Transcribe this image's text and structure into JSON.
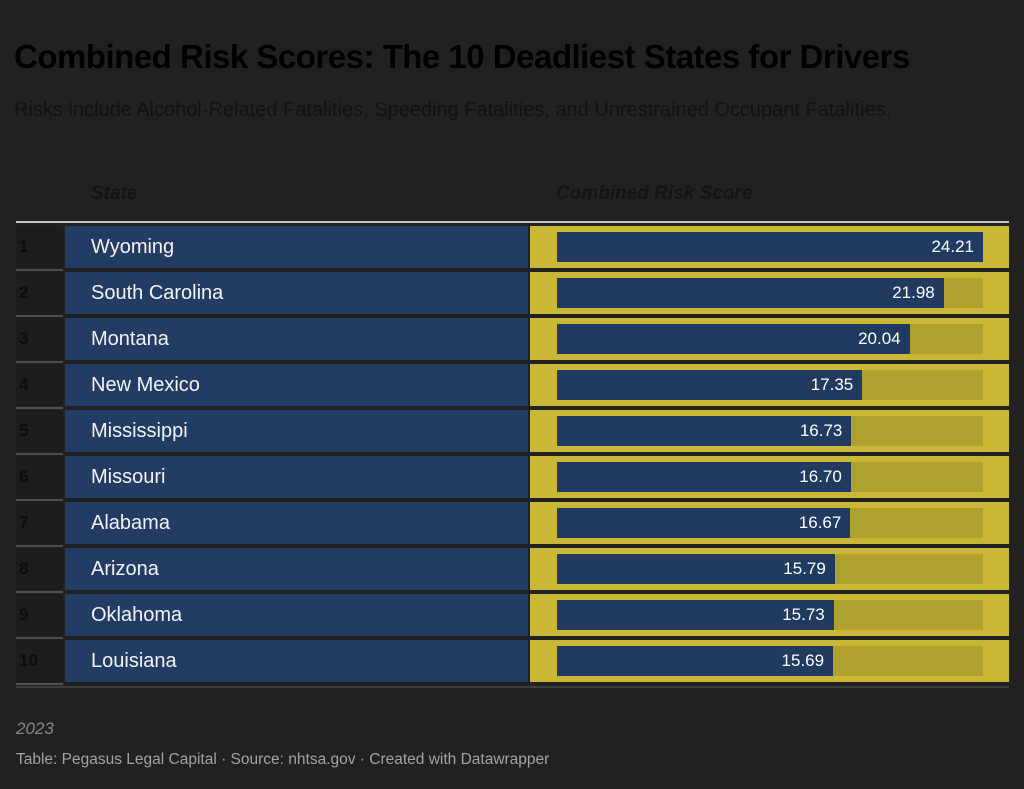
{
  "header": {
    "title": "Combined Risk Scores: The 10 Deadliest States for Drivers",
    "subtitle": "Risks include Alcohol-Related Fatalities, Speeding Fatalities, and Unrestrained Occupant Fatalities."
  },
  "chart_data": {
    "type": "table",
    "title": "Combined Risk Scores: The 10 Deadliest States for Drivers",
    "subtitle": "Risks include Alcohol-Related Fatalities, Speeding Fatalities, and Unrestrained Occupant Fatalities.",
    "columns": [
      "State",
      "Combined Risk Score"
    ],
    "bar_axis": {
      "min": 0,
      "max": 24.21
    },
    "legend": "none",
    "rows": [
      {
        "rank": 1,
        "state": "Wyoming",
        "score": 24.21
      },
      {
        "rank": 2,
        "state": "South Carolina",
        "score": 21.98
      },
      {
        "rank": 3,
        "state": "Montana",
        "score": 20.04
      },
      {
        "rank": 4,
        "state": "New Mexico",
        "score": 17.35
      },
      {
        "rank": 5,
        "state": "Mississippi",
        "score": 16.73
      },
      {
        "rank": 6,
        "state": "Missouri",
        "score": 16.7
      },
      {
        "rank": 7,
        "state": "Alabama",
        "score": 16.67
      },
      {
        "rank": 8,
        "state": "Arizona",
        "score": 15.79
      },
      {
        "rank": 9,
        "state": "Oklahoma",
        "score": 15.73
      },
      {
        "rank": 10,
        "state": "Louisiana",
        "score": 15.69
      }
    ],
    "notes": "2023"
  },
  "footer": {
    "note": "2023",
    "attribution": "Table: Pegasus Legal Capital · Source: nhtsa.gov · Created with Datawrapper"
  },
  "colors": {
    "background": "#212121",
    "title_color": "#000000",
    "subtitle_color": "#121212",
    "header_color": "#141414",
    "top_border": "#c4c4c4",
    "bottom_border": "#3c3c3c",
    "separator": "#4e4e4e",
    "rank_cell_bg": "#1d1d1d",
    "rank_text": "#0c0c0c",
    "row_navy": "#223c64",
    "bar_navy": "#203a60",
    "bar_cell_yellow": "#c9b735",
    "bar_track_yellow": "#b0a02d",
    "state_text": "#f3f3f3",
    "value_text": "#ffffff",
    "note_color": "#868686",
    "attribution_color": "#a2a2a2"
  }
}
